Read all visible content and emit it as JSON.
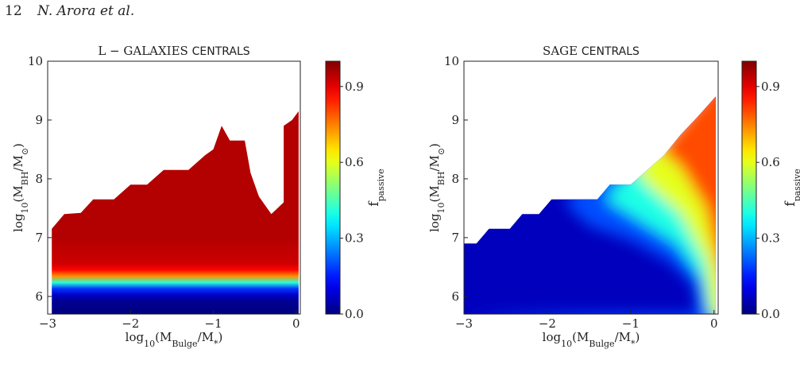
{
  "header": {
    "page_number": "12",
    "authors": "N. Arora et al."
  },
  "chart_data": [
    {
      "type": "heatmap",
      "title": "L − GALAXIES CENTRALS",
      "title_parts": [
        "L − GALAXIES",
        "CENTRALS"
      ],
      "xlabel": "log10(MBulge/M*)",
      "ylabel": "log10(MBH/M⊙)",
      "xlim": [
        -3,
        0.05
      ],
      "ylim": [
        5.7,
        10
      ],
      "xticks": [
        -3,
        -2,
        -1,
        0
      ],
      "xtick_labels": [
        "−3",
        "−2",
        "−1",
        "0"
      ],
      "yticks": [
        6,
        7,
        8,
        9,
        10
      ],
      "ytick_labels": [
        "6",
        "7",
        "8",
        "9",
        "10"
      ],
      "colorbar": {
        "label": "fpassive",
        "range": [
          0,
          1
        ],
        "ticks": [
          0.0,
          0.3,
          0.6,
          0.9
        ],
        "tick_labels": [
          "0.0",
          "0.3",
          "0.6",
          "0.9"
        ],
        "colormap": "jet"
      },
      "upper_envelope": [
        [
          -2.95,
          7.15
        ],
        [
          -2.8,
          7.4
        ],
        [
          -2.6,
          7.42
        ],
        [
          -2.45,
          7.65
        ],
        [
          -2.2,
          7.65
        ],
        [
          -2.0,
          7.9
        ],
        [
          -1.8,
          7.9
        ],
        [
          -1.6,
          8.15
        ],
        [
          -1.3,
          8.15
        ],
        [
          -1.1,
          8.4
        ],
        [
          -1.0,
          8.5
        ],
        [
          -0.9,
          8.9
        ],
        [
          -0.8,
          8.65
        ],
        [
          -0.62,
          8.65
        ],
        [
          -0.55,
          8.1
        ],
        [
          -0.45,
          7.7
        ],
        [
          -0.3,
          7.4
        ],
        [
          -0.15,
          7.6
        ],
        [
          -0.15,
          8.9
        ],
        [
          -0.05,
          9.0
        ],
        [
          0.03,
          9.15
        ]
      ],
      "fpassive_profile": [
        [
          5.7,
          0.0
        ],
        [
          5.95,
          0.02
        ],
        [
          6.1,
          0.12
        ],
        [
          6.2,
          0.3
        ],
        [
          6.28,
          0.55
        ],
        [
          6.36,
          0.78
        ],
        [
          6.5,
          0.92
        ],
        [
          7.0,
          0.95
        ],
        [
          10,
          0.95
        ]
      ]
    },
    {
      "type": "heatmap",
      "title": "SAGE CENTRALS",
      "title_parts": [
        "SAGE",
        "CENTRALS"
      ],
      "xlabel": "log10(MBulge/M*)",
      "ylabel": "log10(MBH/M⊙)",
      "xlim": [
        -3,
        0.05
      ],
      "ylim": [
        5.7,
        10
      ],
      "xticks": [
        -3,
        -2,
        -1,
        0
      ],
      "xtick_labels": [
        "−3",
        "−2",
        "−1",
        "0"
      ],
      "yticks": [
        6,
        7,
        8,
        9,
        10
      ],
      "ytick_labels": [
        "6",
        "7",
        "8",
        "9",
        "10"
      ],
      "colorbar": {
        "label": "fpassive",
        "range": [
          0,
          1
        ],
        "ticks": [
          0.0,
          0.3,
          0.6,
          0.9
        ],
        "tick_labels": [
          "0.0",
          "0.3",
          "0.6",
          "0.9"
        ],
        "colormap": "jet"
      },
      "upper_envelope": [
        [
          -3.0,
          6.9
        ],
        [
          -2.85,
          6.9
        ],
        [
          -2.7,
          7.15
        ],
        [
          -2.45,
          7.15
        ],
        [
          -2.3,
          7.4
        ],
        [
          -2.1,
          7.4
        ],
        [
          -1.95,
          7.65
        ],
        [
          -1.4,
          7.65
        ],
        [
          -1.25,
          7.9
        ],
        [
          -1.0,
          7.9
        ],
        [
          -0.8,
          8.15
        ],
        [
          -0.6,
          8.4
        ],
        [
          -0.4,
          8.75
        ],
        [
          -0.2,
          9.05
        ],
        [
          0.02,
          9.4
        ]
      ],
      "fpassive_contours": [
        [
          0.2,
          [
            [
              -3.0,
              5.7
            ],
            [
              -0.2,
              5.7
            ],
            [
              -0.25,
              6.2
            ],
            [
              -0.55,
              6.6
            ],
            [
              -1.0,
              6.95
            ],
            [
              -1.5,
              7.2
            ],
            [
              -1.8,
              7.6
            ]
          ]
        ],
        [
          0.4,
          [
            [
              -0.08,
              5.7
            ],
            [
              -0.15,
              6.3
            ],
            [
              -0.45,
              6.9
            ],
            [
              -0.9,
              7.3
            ],
            [
              -1.3,
              7.65
            ]
          ]
        ],
        [
          0.6,
          [
            [
              -0.02,
              5.7
            ],
            [
              -0.1,
              6.6
            ],
            [
              -0.4,
              7.4
            ],
            [
              -0.8,
              7.9
            ],
            [
              -0.95,
              8.15
            ]
          ]
        ],
        [
          0.8,
          [
            [
              0.04,
              6.6
            ],
            [
              -0.1,
              7.5
            ],
            [
              -0.4,
              8.2
            ],
            [
              -0.65,
              8.5
            ]
          ]
        ]
      ]
    }
  ]
}
